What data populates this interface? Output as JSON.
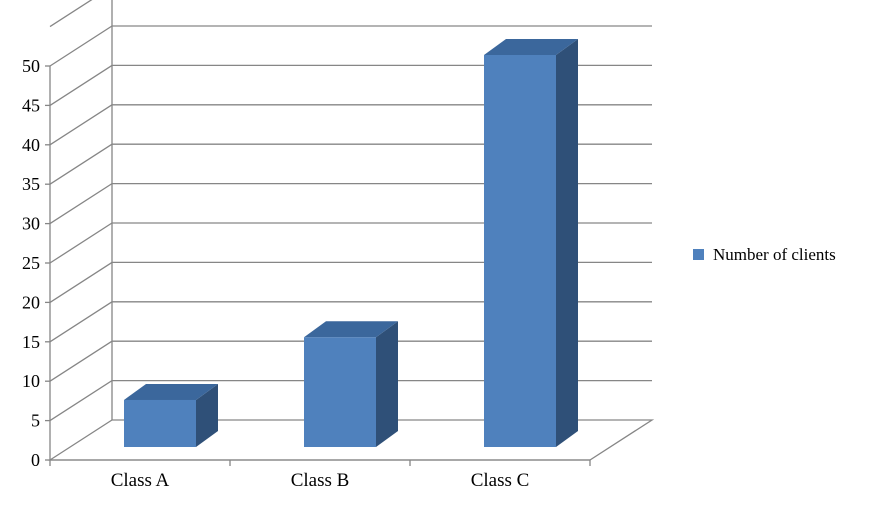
{
  "chart_data": {
    "type": "bar",
    "categories": [
      "Class A",
      "Class B",
      "Class C"
    ],
    "series": [
      {
        "name": "Number of clients",
        "values": [
          6,
          14,
          50
        ]
      }
    ],
    "ylim": [
      0,
      50
    ],
    "yticks": [
      "0",
      "5",
      "10",
      "15",
      "20",
      "25",
      "30",
      "35",
      "40",
      "45",
      "50"
    ],
    "grid": true,
    "legend_position": "right",
    "style": "3d-column",
    "colors": {
      "bar_front": "#4F81BD",
      "bar_side": "#2F5078",
      "bar_top": "#3B679C",
      "grid": "#868686",
      "axis": "#868686"
    }
  }
}
